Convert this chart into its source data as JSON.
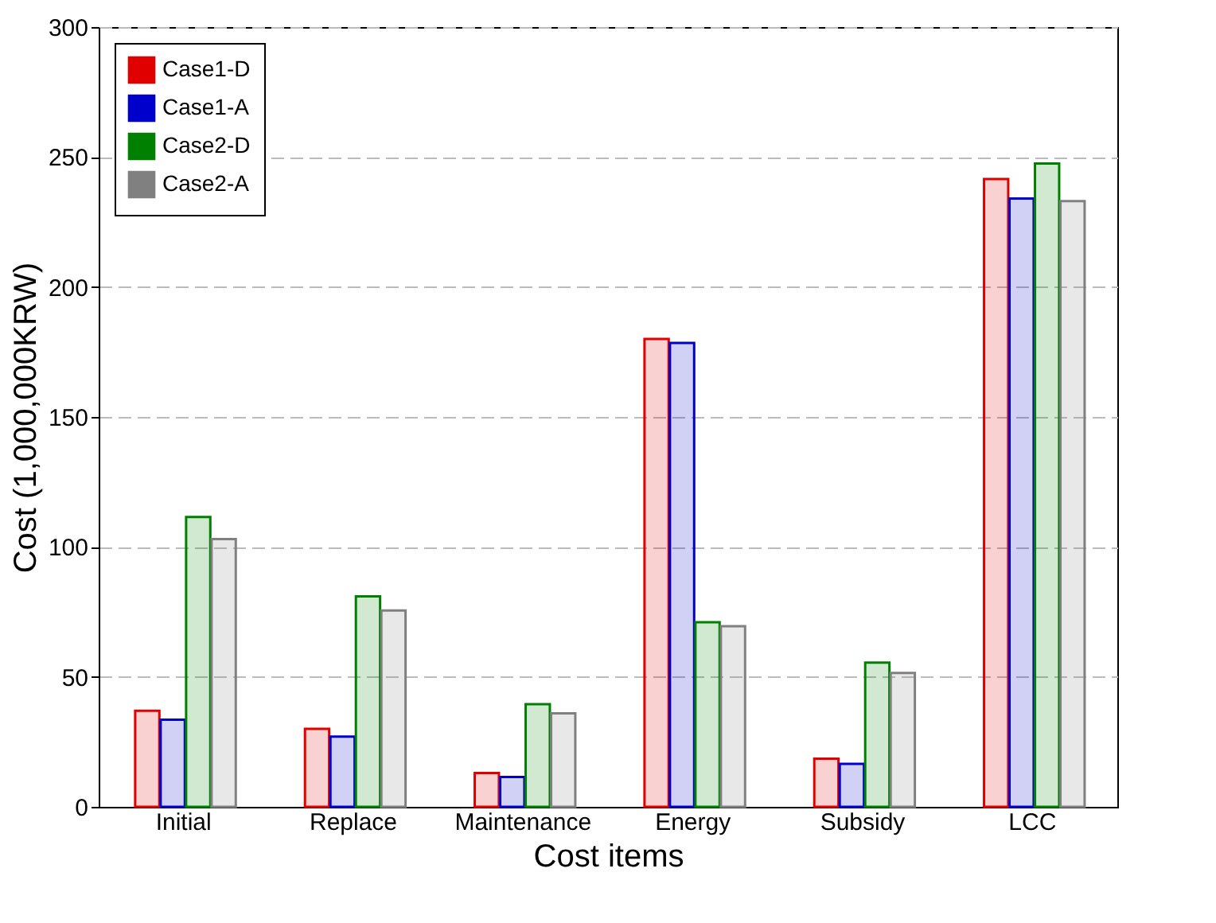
{
  "chart_data": {
    "type": "bar",
    "xlabel": "Cost items",
    "ylabel": "Cost (1,000,000KRW)",
    "categories": [
      "Initial",
      "Replace",
      "Maintenance",
      "Energy",
      "Subsidy",
      "LCC"
    ],
    "series": [
      {
        "name": "Case1-D",
        "color": "#e00000",
        "values": [
          37,
          30,
          13,
          180,
          18.5,
          241.5
        ]
      },
      {
        "name": "Case1-A",
        "color": "#0000cc",
        "values": [
          33.5,
          27,
          11.5,
          178.5,
          16.5,
          234
        ]
      },
      {
        "name": "Case2-D",
        "color": "#008000",
        "values": [
          111.5,
          81,
          39.5,
          71,
          55.5,
          247.5
        ]
      },
      {
        "name": "Case2-A",
        "color": "#808080",
        "values": [
          103,
          75.5,
          36,
          69.5,
          51.5,
          233
        ]
      }
    ],
    "ylim": [
      0,
      300
    ],
    "yticks": [
      0,
      50,
      100,
      150,
      200,
      250,
      300
    ],
    "grid": "y",
    "legend": "top left"
  }
}
